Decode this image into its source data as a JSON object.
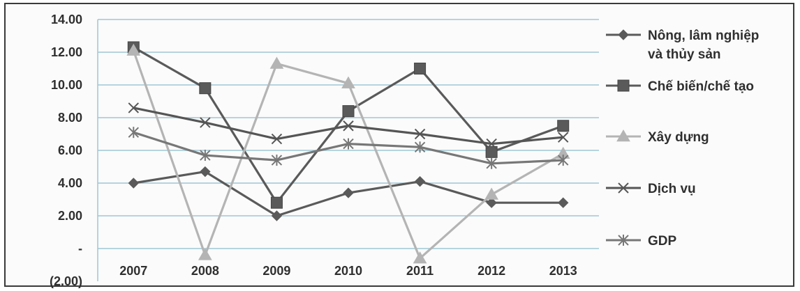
{
  "chart_data": {
    "type": "line",
    "title": "",
    "xlabel": "",
    "ylabel": "",
    "categories": [
      "2007",
      "2008",
      "2009",
      "2010",
      "2011",
      "2012",
      "2013"
    ],
    "ylim": [
      -2,
      14
    ],
    "y_ticks": [
      {
        "value": 14,
        "label": "14.00"
      },
      {
        "value": 12,
        "label": "12.00"
      },
      {
        "value": 10,
        "label": "10.00"
      },
      {
        "value": 8,
        "label": "8.00"
      },
      {
        "value": 6,
        "label": "6.00"
      },
      {
        "value": 4,
        "label": "4.00"
      },
      {
        "value": 2,
        "label": "2.00"
      },
      {
        "value": 0,
        "label": "-"
      },
      {
        "value": -2,
        "label": "(2.00)"
      }
    ],
    "grid": true,
    "legend_position": "right",
    "series": [
      {
        "name_lines": [
          "Nông, lâm nghiệp",
          "và thủy sản"
        ],
        "marker": "diamond",
        "color": "#5a5a5a",
        "values": [
          4.0,
          4.7,
          2.0,
          3.4,
          4.1,
          2.8,
          2.8
        ]
      },
      {
        "name_lines": [
          "Chế biến/chế tạo"
        ],
        "marker": "square",
        "color": "#5a5a5a",
        "values": [
          12.3,
          9.8,
          2.8,
          8.4,
          11.0,
          5.9,
          7.5
        ]
      },
      {
        "name_lines": [
          "Xây dựng"
        ],
        "marker": "triangle",
        "color": "#b4b4b4",
        "values": [
          12.1,
          -0.4,
          11.3,
          10.1,
          -0.6,
          3.3,
          5.8
        ]
      },
      {
        "name_lines": [
          "Dịch vụ"
        ],
        "marker": "x",
        "color": "#555555",
        "values": [
          8.6,
          7.7,
          6.7,
          7.5,
          7.0,
          6.4,
          6.8
        ]
      },
      {
        "name_lines": [
          "GDP"
        ],
        "marker": "star",
        "color": "#777777",
        "values": [
          7.1,
          5.7,
          5.4,
          6.4,
          6.2,
          5.2,
          5.4
        ]
      }
    ]
  }
}
